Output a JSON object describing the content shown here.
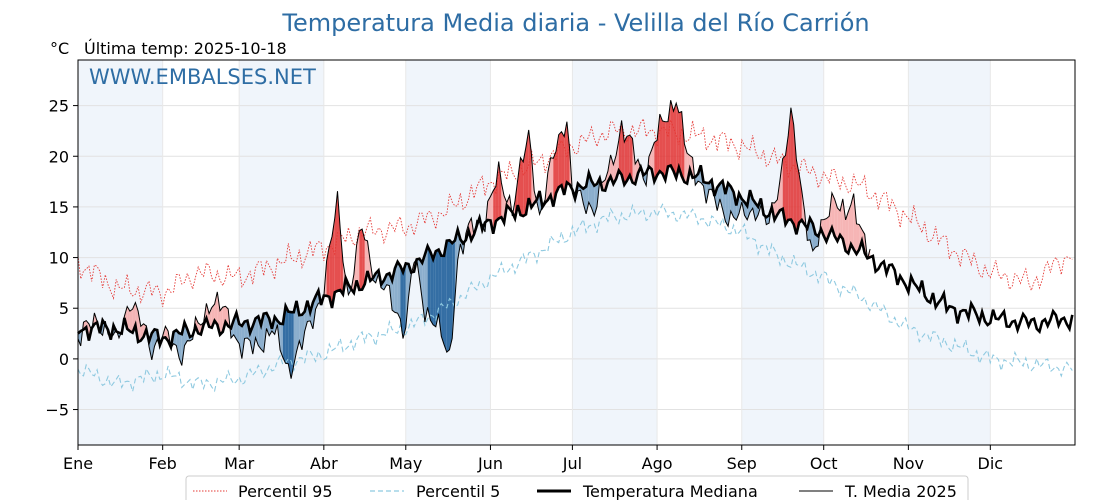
{
  "chart_data": {
    "type": "line",
    "title": "Temperatura Media diaria - Velilla del Río Carrión",
    "unit": "°C",
    "last_temp_label": "Última temp: 2025-10-18",
    "watermark": "WWW.EMBALSES.NET",
    "x_months": [
      "Ene",
      "Feb",
      "Mar",
      "Abr",
      "May",
      "Jun",
      "Jul",
      "Ago",
      "Sep",
      "Oct",
      "Nov",
      "Dic"
    ],
    "month_start_days": [
      1,
      32,
      60,
      91,
      121,
      152,
      182,
      213,
      244,
      274,
      305,
      335
    ],
    "days_in_year": 365,
    "ylim": [
      -8.5,
      29.5
    ],
    "yticks": [
      -5,
      0,
      5,
      10,
      15,
      20,
      25
    ],
    "ytick_labels": [
      "−5",
      "0",
      "5",
      "10",
      "15",
      "20",
      "25"
    ],
    "grid": true,
    "shaded_months": true,
    "legend_position": "bottom-center",
    "colors": {
      "title": "#2e6da4",
      "p95": "#e53935",
      "p5": "#8ec9e0",
      "median": "#000000",
      "year": "#000000",
      "above_fill": "#f4a8a8",
      "above_fill_strong": "#e03030",
      "below_fill": "#7fa6c8",
      "below_fill_strong": "#1f5f9a",
      "shade": "#e9f1fa"
    },
    "series": [
      {
        "name": "Percentil 95",
        "style": "dotted",
        "color": "#e53935",
        "anchors": [
          [
            1,
            9.5
          ],
          [
            15,
            7
          ],
          [
            32,
            6.5
          ],
          [
            45,
            8.5
          ],
          [
            60,
            8
          ],
          [
            75,
            9.5
          ],
          [
            91,
            11
          ],
          [
            105,
            12.5
          ],
          [
            121,
            13
          ],
          [
            135,
            14.5
          ],
          [
            152,
            17.5
          ],
          [
            166,
            19
          ],
          [
            182,
            21
          ],
          [
            196,
            22.5
          ],
          [
            213,
            22.5
          ],
          [
            228,
            22
          ],
          [
            244,
            21
          ],
          [
            258,
            19.5
          ],
          [
            274,
            18
          ],
          [
            288,
            17
          ],
          [
            305,
            14
          ],
          [
            320,
            11
          ],
          [
            335,
            8.5
          ],
          [
            350,
            7.5
          ],
          [
            365,
            10.5
          ]
        ],
        "noise": [
          1.5,
          7
        ]
      },
      {
        "name": "Percentil 5",
        "style": "dashed",
        "color": "#8ec9e0",
        "anchors": [
          [
            1,
            -1
          ],
          [
            15,
            -2.5
          ],
          [
            32,
            -1.5
          ],
          [
            45,
            -2.5
          ],
          [
            60,
            -2
          ],
          [
            75,
            -0.5
          ],
          [
            91,
            0.5
          ],
          [
            105,
            2
          ],
          [
            121,
            3
          ],
          [
            135,
            5
          ],
          [
            152,
            8
          ],
          [
            166,
            10
          ],
          [
            182,
            12.5
          ],
          [
            196,
            14
          ],
          [
            213,
            14.5
          ],
          [
            228,
            14
          ],
          [
            244,
            12.5
          ],
          [
            258,
            10
          ],
          [
            274,
            8
          ],
          [
            288,
            6
          ],
          [
            305,
            3
          ],
          [
            320,
            1.5
          ],
          [
            335,
            0
          ],
          [
            350,
            -0.5
          ],
          [
            365,
            -1
          ]
        ],
        "noise": [
          1.0,
          13
        ]
      },
      {
        "name": "Temperatura Mediana",
        "style": "thick",
        "color": "#000000",
        "anchors": [
          [
            1,
            3
          ],
          [
            15,
            3
          ],
          [
            32,
            2
          ],
          [
            45,
            3
          ],
          [
            60,
            3.5
          ],
          [
            75,
            4
          ],
          [
            91,
            6
          ],
          [
            105,
            7.5
          ],
          [
            121,
            9
          ],
          [
            135,
            11
          ],
          [
            152,
            13.5
          ],
          [
            166,
            15
          ],
          [
            182,
            17
          ],
          [
            196,
            17.5
          ],
          [
            213,
            18.5
          ],
          [
            228,
            18
          ],
          [
            244,
            16
          ],
          [
            258,
            14
          ],
          [
            274,
            12.5
          ],
          [
            288,
            10.5
          ],
          [
            305,
            7.5
          ],
          [
            320,
            5
          ],
          [
            335,
            4
          ],
          [
            350,
            3.5
          ],
          [
            365,
            4
          ]
        ],
        "noise": [
          1.2,
          21
        ]
      },
      {
        "name": "T. Media 2025",
        "style": "thin",
        "color": "#000000",
        "last_day": 291,
        "anchors": [
          [
            1,
            2
          ],
          [
            8,
            4
          ],
          [
            15,
            1.5
          ],
          [
            20,
            6
          ],
          [
            28,
            1
          ],
          [
            32,
            2.5
          ],
          [
            38,
            0.5
          ],
          [
            45,
            3
          ],
          [
            50,
            6
          ],
          [
            55,
            4.5
          ],
          [
            60,
            1.5
          ],
          [
            66,
            1
          ],
          [
            72,
            3
          ],
          [
            78,
            -1
          ],
          [
            84,
            2
          ],
          [
            91,
            7
          ],
          [
            96,
            15.5
          ],
          [
            100,
            6
          ],
          [
            105,
            13
          ],
          [
            110,
            8
          ],
          [
            114,
            6.5
          ],
          [
            121,
            3
          ],
          [
            124,
            10
          ],
          [
            128,
            5
          ],
          [
            132,
            3.5
          ],
          [
            137,
            0
          ],
          [
            140,
            10
          ],
          [
            145,
            13
          ],
          [
            150,
            14
          ],
          [
            155,
            18
          ],
          [
            160,
            15
          ],
          [
            166,
            22
          ],
          [
            170,
            14
          ],
          [
            176,
            21
          ],
          [
            180,
            24
          ],
          [
            182,
            16
          ],
          [
            190,
            15
          ],
          [
            196,
            19
          ],
          [
            200,
            23
          ],
          [
            205,
            20
          ],
          [
            208,
            18
          ],
          [
            213,
            22
          ],
          [
            220,
            26
          ],
          [
            224,
            20
          ],
          [
            228,
            18
          ],
          [
            232,
            16
          ],
          [
            236,
            15
          ],
          [
            240,
            14
          ],
          [
            244,
            14
          ],
          [
            250,
            15
          ],
          [
            254,
            13
          ],
          [
            258,
            18
          ],
          [
            262,
            24
          ],
          [
            266,
            16
          ],
          [
            270,
            10.5
          ],
          [
            274,
            13
          ],
          [
            278,
            16.5
          ],
          [
            282,
            14
          ],
          [
            285,
            15
          ],
          [
            288,
            13
          ],
          [
            291,
            10.5
          ]
        ],
        "noise": [
          1.6,
          33
        ]
      }
    ]
  }
}
